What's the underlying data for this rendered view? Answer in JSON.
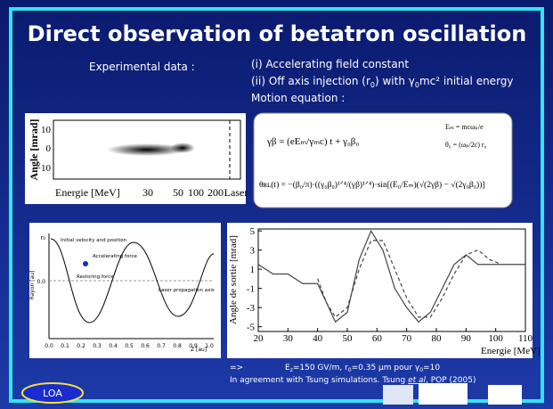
{
  "slide": {
    "title": "Direct observation of betatron oscillation",
    "experimental": "Experimental data :",
    "points": [
      "(i) Accelerating field constant",
      "(ii) Off axis injection (r",
      "0",
      ") with γ",
      "0",
      "mc² initial energy",
      "Motion equation :"
    ],
    "spectrum": {
      "ylabel": "Angle [mrad]",
      "yticks": [
        "10",
        "0",
        "−10"
      ],
      "xlabel": "Energie [MeV]",
      "xticks": [
        "30",
        "50",
        "100",
        "200",
        "Laser"
      ]
    },
    "equations": [
      "γβ = (eEₘ/γₘc) t + γ₀β₀",
      "Eₘ = mcωₚ/e",
      "θ₀ = (ωₚ/2c) r₀",
      "θʀʟ(t) = −(β₀/π)·((γ₀β₀)¹ᐟ⁴/(γβ)¹ᐟ⁴)·sin[(E₀/Eₘ)(√(2γβ) − √(2γ₀β₀))]"
    ],
    "sketch": {
      "ylabel": "Rayon [au]",
      "r0": "r₀",
      "zero": "0.0",
      "labels": [
        "Initial velocity and position",
        "Accelerating force",
        "Restoring force",
        "Laser propagation axis"
      ],
      "xticks": [
        "0.0",
        "0.1",
        "0.2",
        "0.3",
        "0.4",
        "0.5",
        "0.6",
        "0.7",
        "0.8",
        "0.9",
        "1.0"
      ],
      "xlabel": "Z [au]"
    },
    "plot": {
      "ylabel": "Angle de sortie [mrad]",
      "xlabel": "Energie [MeV]",
      "xlim": [
        20,
        110
      ],
      "ylim": [
        -5.5,
        5.2
      ],
      "xticks": [
        20,
        30,
        40,
        50,
        60,
        70,
        80,
        90,
        100,
        110
      ],
      "yticks": [
        5,
        3,
        1,
        -1,
        -3,
        -5
      ],
      "x": [
        20,
        25,
        30,
        35,
        40,
        43,
        46,
        50,
        54,
        58,
        62,
        66,
        70,
        74,
        78,
        82,
        86,
        90,
        94,
        98,
        102,
        110
      ],
      "solid": [
        1.5,
        0.5,
        0.5,
        -0.5,
        -0.5,
        -2.5,
        -4.5,
        -3.5,
        2,
        5,
        3,
        -1,
        -3,
        -4.5,
        -3.5,
        -1,
        1.5,
        2.5,
        1.5,
        1.5,
        1.5,
        1.5
      ],
      "dashed": [
        null,
        null,
        null,
        null,
        0,
        -2.5,
        -4,
        -3,
        1,
        4,
        4,
        1,
        -2,
        -4,
        -4,
        -2,
        0.5,
        2.5,
        3,
        2,
        1.5,
        null
      ]
    },
    "note": {
      "arrow": "=>",
      "line1": [
        "E",
        "z",
        "=150 GV/m, r",
        "0",
        "=0.35 µm pour γ",
        "0",
        "=10"
      ],
      "line2": [
        "In agreement with Tsung simulations. Tsung ",
        "et al",
        ", POP (2005)"
      ]
    },
    "logo": "LOA"
  }
}
